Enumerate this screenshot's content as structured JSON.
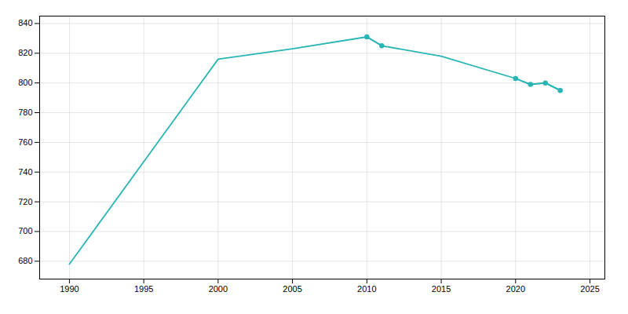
{
  "chart_data": {
    "type": "line",
    "x": [
      1990,
      2000,
      2005,
      2010,
      2011,
      2015,
      2020,
      2021,
      2022,
      2023
    ],
    "series": [
      {
        "color": "#2ab5b5",
        "values": [
          678,
          816,
          823,
          831,
          825,
          818,
          803,
          799,
          800,
          795
        ]
      },
      {
        "color": "#2ab5b5",
        "marker": "circle",
        "values": [
          null,
          null,
          null,
          831,
          825,
          null,
          803,
          799,
          800,
          795
        ]
      }
    ],
    "xlim": [
      1988,
      2026
    ],
    "xticks": [
      1990,
      1995,
      2000,
      2005,
      2010,
      2015,
      2020,
      2025
    ],
    "ylim": [
      668,
      845
    ],
    "yticks": [
      680,
      700,
      720,
      740,
      760,
      780,
      800,
      820,
      840
    ],
    "grid": true
  }
}
